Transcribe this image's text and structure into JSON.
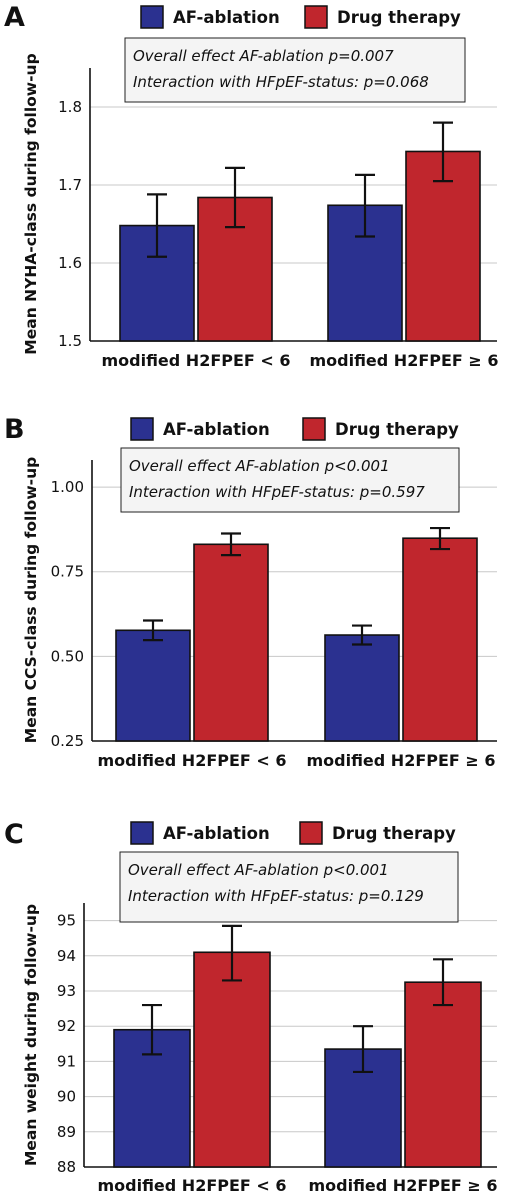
{
  "colors": {
    "af_ablation": "#2b3190",
    "drug_therapy": "#c0262d",
    "grid": "#c8c8c8",
    "annot_bg": "#f4f4f4"
  },
  "chart_data": [
    {
      "panel_letter": "A",
      "type": "bar",
      "categories": [
        "modified H2FPEF < 6",
        "modified H2FPEF ≥ 6"
      ],
      "series": [
        {
          "name": "AF-ablation",
          "values": [
            1.648,
            1.674
          ],
          "err_low": [
            1.608,
            1.634
          ],
          "err_high": [
            1.688,
            1.713
          ]
        },
        {
          "name": "Drug therapy",
          "values": [
            1.684,
            1.743
          ],
          "err_low": [
            1.646,
            1.705
          ],
          "err_high": [
            1.722,
            1.78
          ]
        }
      ],
      "ylabel": "Mean NYHA-class during follow-up",
      "ylim": [
        1.5,
        1.85
      ],
      "yticks": [
        "1.5",
        "1.6",
        "1.7",
        "1.8"
      ],
      "grid": true,
      "legend": "top",
      "annotation": [
        "Overall effect AF-ablation  p=0.007",
        "Interaction with HFpEF-status: p=0.068"
      ]
    },
    {
      "panel_letter": "B",
      "type": "bar",
      "categories": [
        "modified H2FPEF < 6",
        "modified H2FPEF ≥ 6"
      ],
      "series": [
        {
          "name": "AF-ablation",
          "values": [
            0.577,
            0.563
          ],
          "err_low": [
            0.548,
            0.535
          ],
          "err_high": [
            0.606,
            0.591
          ]
        },
        {
          "name": "Drug therapy",
          "values": [
            0.831,
            0.849
          ],
          "err_low": [
            0.799,
            0.817
          ],
          "err_high": [
            0.863,
            0.879
          ]
        }
      ],
      "ylabel": "Mean CCS-class during follow-up",
      "ylim": [
        0.25,
        1.08
      ],
      "yticks": [
        "0.25",
        "0.50",
        "0.75",
        "1.00"
      ],
      "grid": true,
      "legend": "top",
      "annotation": [
        "Overall effect AF-ablation  p<0.001",
        "Interaction with HFpEF-status: p=0.597"
      ]
    },
    {
      "panel_letter": "C",
      "type": "bar",
      "categories": [
        "modified H2FPEF < 6",
        "modified H2FPEF ≥ 6"
      ],
      "series": [
        {
          "name": "AF-ablation",
          "values": [
            91.9,
            91.35
          ],
          "err_low": [
            91.2,
            90.7
          ],
          "err_high": [
            92.6,
            92.0
          ]
        },
        {
          "name": "Drug therapy",
          "values": [
            94.1,
            93.25
          ],
          "err_low": [
            93.3,
            92.6
          ],
          "err_high": [
            94.85,
            93.9
          ]
        }
      ],
      "ylabel": "Mean weight during follow-up",
      "ylim": [
        88,
        95.5
      ],
      "yticks": [
        "88",
        "89",
        "90",
        "91",
        "92",
        "93",
        "94",
        "95"
      ],
      "grid": true,
      "legend": "top",
      "annotation": [
        "Overall effect AF-ablation  p<0.001",
        "Interaction with HFpEF-status: p=0.129"
      ]
    }
  ]
}
